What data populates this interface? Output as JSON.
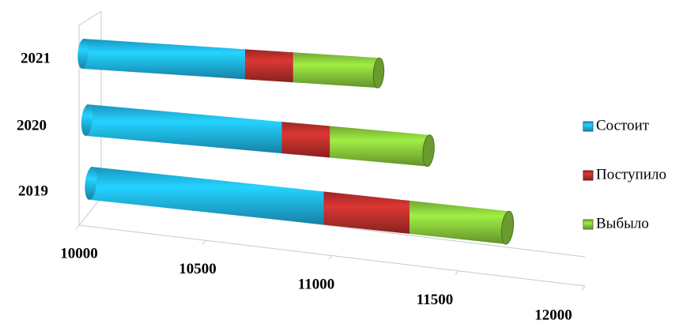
{
  "chart_data": {
    "type": "bar3d",
    "categories": [
      "2019",
      "2020",
      "2021"
    ],
    "series": [
      {
        "name": "Состоит",
        "color": "#1fb8ee",
        "values": [
          10950,
          10850,
          10740
        ]
      },
      {
        "name": "Поступило",
        "color": "#c0302c",
        "values": [
          350,
          210,
          220
        ]
      },
      {
        "name": "Выбыло",
        "color": "#8ccf3c",
        "values": [
          400,
          430,
          390
        ]
      }
    ],
    "xlim": [
      10000,
      12000
    ],
    "xticks": [
      10000,
      10500,
      11000,
      11500,
      12000
    ],
    "legend": "right"
  }
}
